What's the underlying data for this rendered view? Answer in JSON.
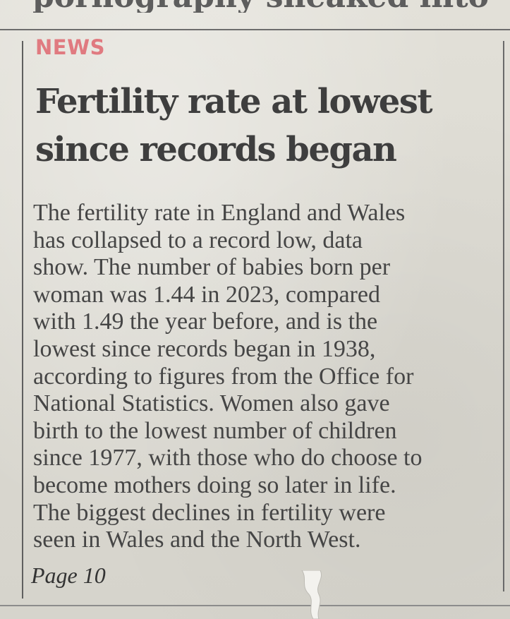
{
  "top_snippet": "pornography sneaked into online",
  "article": {
    "kicker": "NEWS",
    "headline_lines": [
      "Fertility rate at lowest",
      "since records began"
    ],
    "body_lines": [
      "The fertility rate in England and Wales",
      "has collapsed to a record low, data",
      "show. The number of babies born per",
      "woman was 1.44 in 2023, compared",
      "with 1.49 the year before, and is the",
      "lowest since records began in 1938,",
      "according to figures from the Office for",
      "National Statistics. Women also gave",
      "birth to the lowest number of children",
      "since 1977, with those who do choose to",
      "become mothers doing so later in life.",
      "The biggest declines in fertility were",
      "seen in Wales and the North West."
    ],
    "page_ref": "Page 10"
  },
  "colors": {
    "kicker": "#e07a80",
    "headline": "#3e3e3e",
    "body": "#454545",
    "paper": "#dcdad2"
  }
}
